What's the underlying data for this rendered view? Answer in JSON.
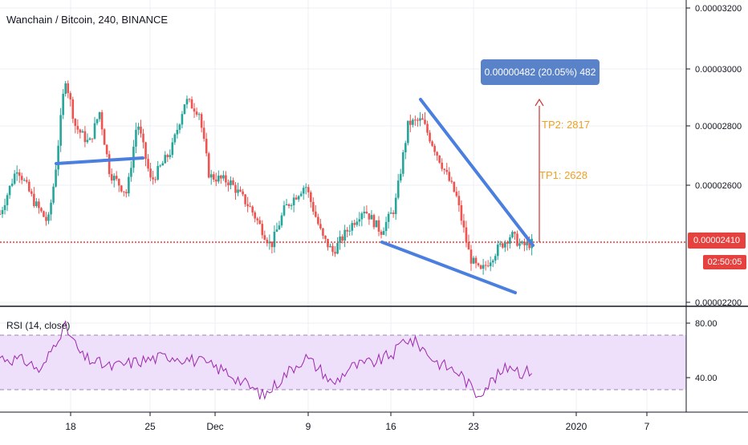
{
  "header": {
    "title": "Wanchain / Bitcoin, 240, BINANCE"
  },
  "colors": {
    "up": "#26a69a",
    "down": "#ef5350",
    "trendline": "#4a7fe0",
    "rsi_line": "#9c27b0",
    "rsi_band": "#eedffa",
    "target": "#f0a022",
    "arrow": "#d32f2f",
    "last_price": "#e4413f",
    "measure_box": "#5a82c9"
  },
  "price_panel": {
    "current_price_label": "0.00002410",
    "countdown_label": "02:50:05",
    "axis_labels": [
      "0.00003200",
      "0.00003000",
      "0.00002800",
      "0.00002600",
      "0.00002200"
    ],
    "measure_label": "0.00000482 (20.05%) 482",
    "tp1_label": "TP1: 2628",
    "tp2_label": "TP2: 2817"
  },
  "rsi_panel": {
    "label": "RSI (14, close)",
    "axis_labels": [
      "80.00",
      "40.00"
    ]
  },
  "time_axis": {
    "labels": [
      "18",
      "25",
      "Dec",
      "9",
      "16",
      "23",
      "2020",
      "7"
    ]
  },
  "chart_data": {
    "type": "candlestick",
    "title": "Wanchain / Bitcoin, 240, BINANCE",
    "y_axis_range": [
      2.2e-05,
      3.22e-05
    ],
    "last_price": 2.41e-05,
    "annotations": [
      {
        "label": "TP1: 2628",
        "value": 2.628e-05
      },
      {
        "label": "TP2: 2817",
        "value": 2.817e-05
      },
      {
        "label": "0.00000482 (20.05%) 482",
        "value": 4.82e-06
      }
    ],
    "anchors": [
      {
        "t": 0.0,
        "p": 2.51e-05
      },
      {
        "t": 0.025,
        "p": 2.67e-05
      },
      {
        "t": 0.05,
        "p": 2.55e-05
      },
      {
        "t": 0.07,
        "p": 2.48e-05
      },
      {
        "t": 0.08,
        "p": 2.64e-05
      },
      {
        "t": 0.095,
        "p": 2.98e-05
      },
      {
        "t": 0.11,
        "p": 2.81e-05
      },
      {
        "t": 0.13,
        "p": 2.75e-05
      },
      {
        "t": 0.145,
        "p": 2.86e-05
      },
      {
        "t": 0.16,
        "p": 2.65e-05
      },
      {
        "t": 0.185,
        "p": 2.58e-05
      },
      {
        "t": 0.2,
        "p": 2.83e-05
      },
      {
        "t": 0.22,
        "p": 2.62e-05
      },
      {
        "t": 0.25,
        "p": 2.73e-05
      },
      {
        "t": 0.27,
        "p": 2.9e-05
      },
      {
        "t": 0.29,
        "p": 2.86e-05
      },
      {
        "t": 0.305,
        "p": 2.64e-05
      },
      {
        "t": 0.335,
        "p": 2.62e-05
      },
      {
        "t": 0.365,
        "p": 2.53e-05
      },
      {
        "t": 0.395,
        "p": 2.4e-05
      },
      {
        "t": 0.415,
        "p": 2.53e-05
      },
      {
        "t": 0.445,
        "p": 2.61e-05
      },
      {
        "t": 0.47,
        "p": 2.43e-05
      },
      {
        "t": 0.485,
        "p": 2.38e-05
      },
      {
        "t": 0.505,
        "p": 2.45e-05
      },
      {
        "t": 0.53,
        "p": 2.53e-05
      },
      {
        "t": 0.555,
        "p": 2.45e-05
      },
      {
        "t": 0.575,
        "p": 2.53e-05
      },
      {
        "t": 0.595,
        "p": 2.82e-05
      },
      {
        "t": 0.615,
        "p": 2.83e-05
      },
      {
        "t": 0.64,
        "p": 2.7e-05
      },
      {
        "t": 0.665,
        "p": 2.57e-05
      },
      {
        "t": 0.685,
        "p": 2.36e-05
      },
      {
        "t": 0.7,
        "p": 2.31e-05
      },
      {
        "t": 0.725,
        "p": 2.39e-05
      },
      {
        "t": 0.745,
        "p": 2.44e-05
      },
      {
        "t": 0.76,
        "p": 2.4e-05
      },
      {
        "t": 0.775,
        "p": 2.41e-05
      }
    ],
    "rsi": {
      "overbought": 70,
      "oversold": 30,
      "range": [
        18,
        88
      ],
      "anchors": [
        {
          "t": 0.0,
          "v": 55
        },
        {
          "t": 0.04,
          "v": 52
        },
        {
          "t": 0.06,
          "v": 45
        },
        {
          "t": 0.085,
          "v": 70
        },
        {
          "t": 0.095,
          "v": 76
        },
        {
          "t": 0.12,
          "v": 55
        },
        {
          "t": 0.16,
          "v": 48
        },
        {
          "t": 0.2,
          "v": 52
        },
        {
          "t": 0.25,
          "v": 56
        },
        {
          "t": 0.29,
          "v": 52
        },
        {
          "t": 0.33,
          "v": 45
        },
        {
          "t": 0.385,
          "v": 28
        },
        {
          "t": 0.42,
          "v": 45
        },
        {
          "t": 0.445,
          "v": 55
        },
        {
          "t": 0.47,
          "v": 45
        },
        {
          "t": 0.485,
          "v": 36
        },
        {
          "t": 0.51,
          "v": 48
        },
        {
          "t": 0.55,
          "v": 52
        },
        {
          "t": 0.575,
          "v": 58
        },
        {
          "t": 0.59,
          "v": 68
        },
        {
          "t": 0.61,
          "v": 64
        },
        {
          "t": 0.635,
          "v": 52
        },
        {
          "t": 0.67,
          "v": 44
        },
        {
          "t": 0.695,
          "v": 29
        },
        {
          "t": 0.72,
          "v": 40
        },
        {
          "t": 0.745,
          "v": 50
        },
        {
          "t": 0.76,
          "v": 44
        },
        {
          "t": 0.775,
          "v": 46
        }
      ]
    }
  }
}
